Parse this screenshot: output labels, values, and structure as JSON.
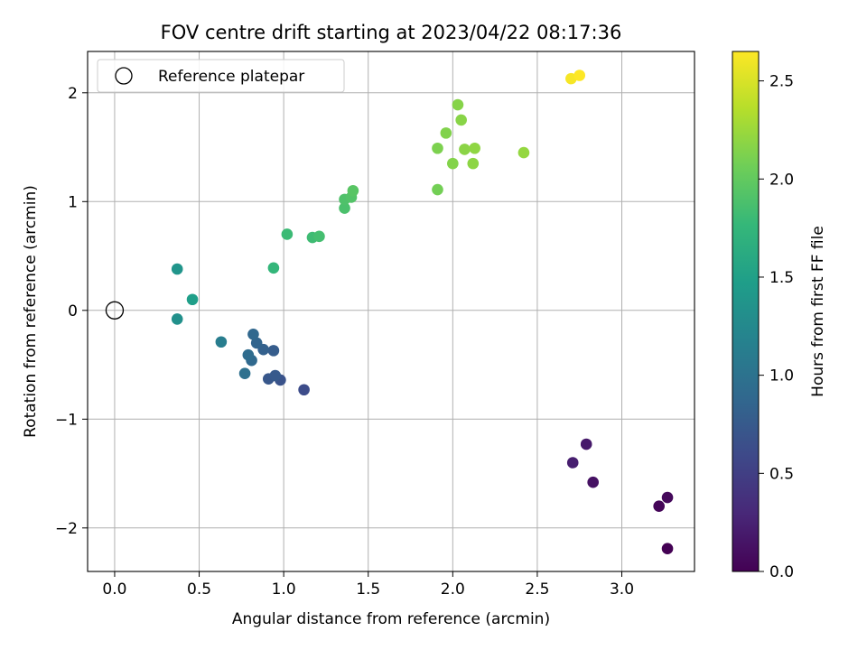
{
  "chart_data": {
    "type": "scatter",
    "title": "FOV centre drift starting at 2023/04/22 08:17:36",
    "xlabel": "Angular distance from reference (arcmin)",
    "ylabel": "Rotation from reference (arcmin)",
    "xlim": [
      -0.16,
      3.43
    ],
    "ylim": [
      -2.4,
      2.38
    ],
    "xticks": [
      0.0,
      0.5,
      1.0,
      1.5,
      2.0,
      2.5,
      3.0
    ],
    "xtick_labels": [
      "0.0",
      "0.5",
      "1.0",
      "1.5",
      "2.0",
      "2.5",
      "3.0"
    ],
    "yticks": [
      -2,
      -1,
      0,
      1,
      2
    ],
    "ytick_labels": [
      "−2",
      "−1",
      "0",
      "1",
      "2"
    ],
    "grid": true,
    "legend": {
      "position": "top-left",
      "entries": [
        "Reference platepar"
      ]
    },
    "reference_point": {
      "x": 0.0,
      "y": 0.0,
      "marker": "open-circle"
    },
    "colorbar": {
      "label": "Hours from first FF file",
      "range": [
        0.0,
        2.65
      ],
      "ticks": [
        0.0,
        0.5,
        1.0,
        1.5,
        2.0,
        2.5
      ],
      "tick_labels": [
        "0.0",
        "0.5",
        "1.0",
        "1.5",
        "2.0",
        "2.5"
      ],
      "colormap": [
        "#440154",
        "#482878",
        "#3e4989",
        "#31688e",
        "#26828e",
        "#1f9e89",
        "#35b779",
        "#6ece58",
        "#b5de2b",
        "#fde725"
      ]
    },
    "points": [
      {
        "x": 3.27,
        "y": -2.19,
        "c": 0.0
      },
      {
        "x": 3.22,
        "y": -1.8,
        "c": 0.03
      },
      {
        "x": 3.27,
        "y": -1.72,
        "c": 0.06
      },
      {
        "x": 2.83,
        "y": -1.58,
        "c": 0.12
      },
      {
        "x": 2.79,
        "y": -1.23,
        "c": 0.18
      },
      {
        "x": 2.71,
        "y": -1.4,
        "c": 0.22
      },
      {
        "x": 1.12,
        "y": -0.73,
        "c": 0.62
      },
      {
        "x": 0.98,
        "y": -0.64,
        "c": 0.68
      },
      {
        "x": 0.91,
        "y": -0.63,
        "c": 0.72
      },
      {
        "x": 0.95,
        "y": -0.6,
        "c": 0.75
      },
      {
        "x": 0.94,
        "y": -0.37,
        "c": 0.78
      },
      {
        "x": 0.88,
        "y": -0.36,
        "c": 0.82
      },
      {
        "x": 0.84,
        "y": -0.3,
        "c": 0.85
      },
      {
        "x": 0.82,
        "y": -0.22,
        "c": 0.88
      },
      {
        "x": 0.81,
        "y": -0.46,
        "c": 0.9
      },
      {
        "x": 0.79,
        "y": -0.41,
        "c": 0.93
      },
      {
        "x": 0.77,
        "y": -0.58,
        "c": 0.97
      },
      {
        "x": 0.63,
        "y": -0.29,
        "c": 1.12
      },
      {
        "x": 0.37,
        "y": -0.08,
        "c": 1.33
      },
      {
        "x": 0.37,
        "y": 0.38,
        "c": 1.38
      },
      {
        "x": 0.46,
        "y": 0.1,
        "c": 1.48
      },
      {
        "x": 0.94,
        "y": 0.39,
        "c": 1.75
      },
      {
        "x": 1.02,
        "y": 0.7,
        "c": 1.8
      },
      {
        "x": 1.17,
        "y": 0.67,
        "c": 1.82
      },
      {
        "x": 1.21,
        "y": 0.68,
        "c": 1.85
      },
      {
        "x": 1.36,
        "y": 0.94,
        "c": 1.88
      },
      {
        "x": 1.36,
        "y": 1.02,
        "c": 1.9
      },
      {
        "x": 1.4,
        "y": 1.04,
        "c": 1.92
      },
      {
        "x": 1.41,
        "y": 1.1,
        "c": 1.95
      },
      {
        "x": 1.91,
        "y": 1.11,
        "c": 2.08
      },
      {
        "x": 1.91,
        "y": 1.49,
        "c": 2.12
      },
      {
        "x": 1.96,
        "y": 1.63,
        "c": 2.14
      },
      {
        "x": 2.0,
        "y": 1.35,
        "c": 2.15
      },
      {
        "x": 2.03,
        "y": 1.89,
        "c": 2.16
      },
      {
        "x": 2.05,
        "y": 1.75,
        "c": 2.17
      },
      {
        "x": 2.07,
        "y": 1.48,
        "c": 2.18
      },
      {
        "x": 2.12,
        "y": 1.35,
        "c": 2.19
      },
      {
        "x": 2.13,
        "y": 1.49,
        "c": 2.2
      },
      {
        "x": 2.42,
        "y": 1.45,
        "c": 2.22
      },
      {
        "x": 2.7,
        "y": 2.13,
        "c": 2.62
      },
      {
        "x": 2.75,
        "y": 2.16,
        "c": 2.65
      }
    ]
  }
}
